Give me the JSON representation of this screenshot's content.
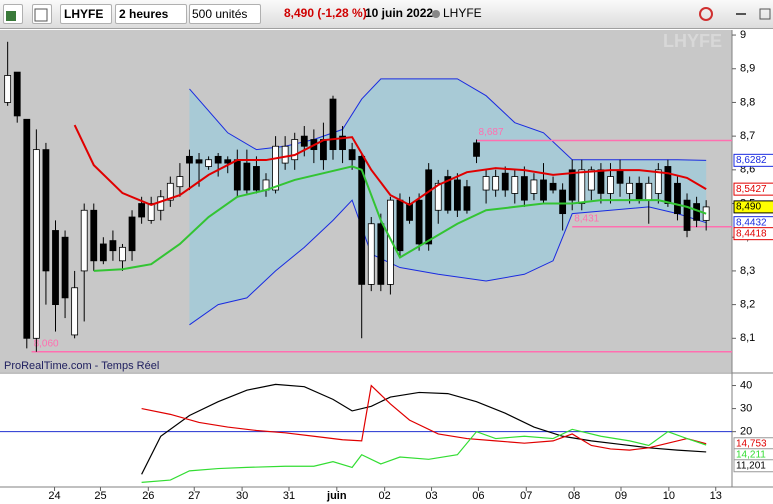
{
  "toolbar": {
    "symbol": "LHYFE",
    "period": "2 heures",
    "units": "500 unités",
    "quote": "8,490 (-1,28 %)",
    "date": "10 juin 2022",
    "name": "LHYFE"
  },
  "chart_data": [
    {
      "type": "candlestick",
      "watermark": "LHYFE",
      "footer": "ProRealTime.com - Temps Réel",
      "xlim": [
        -0.8,
        75.7
      ],
      "ylim": [
        8.0,
        9.015
      ],
      "yticks": [
        {
          "value": 9,
          "label": "9"
        },
        {
          "value": 8.9,
          "label": "8,9"
        },
        {
          "value": 8.8,
          "label": "8,8"
        },
        {
          "value": 8.7,
          "label": "8,7"
        },
        {
          "value": 8.6,
          "label": "8,6"
        },
        {
          "value": 8.5,
          "label": "8,5"
        },
        {
          "value": 8.4,
          "label": "8,4"
        },
        {
          "value": 8.3,
          "label": "8,3"
        },
        {
          "value": 8.2,
          "label": "8,2"
        },
        {
          "value": 8.1,
          "label": "8,1"
        }
      ],
      "xticks": [
        {
          "value": 4.9,
          "label": "24"
        },
        {
          "value": 9.7,
          "label": "25"
        },
        {
          "value": 14.7,
          "label": "26"
        },
        {
          "value": 19.5,
          "label": "27"
        },
        {
          "value": 24.5,
          "label": "30"
        },
        {
          "value": 29.4,
          "label": "31"
        },
        {
          "value": 34.4,
          "label": "juin"
        },
        {
          "value": 39.4,
          "label": "02"
        },
        {
          "value": 44.3,
          "label": "03"
        },
        {
          "value": 49.2,
          "label": "06"
        },
        {
          "value": 54.2,
          "label": "07"
        },
        {
          "value": 59.2,
          "label": "08"
        },
        {
          "value": 64.1,
          "label": "09"
        },
        {
          "value": 69.1,
          "label": "10"
        },
        {
          "value": 74,
          "label": "13"
        }
      ],
      "candles": {
        "open": [
          8.8,
          8.89,
          8.75,
          8.1,
          8.66,
          8.42,
          8.4,
          8.11,
          8.3,
          8.48,
          8.38,
          8.39,
          8.33,
          8.46,
          8.5,
          8.45,
          8.48,
          8.51,
          8.55,
          8.64,
          8.63,
          8.61,
          8.64,
          8.63,
          8.63,
          8.62,
          8.61,
          8.54,
          8.54,
          8.62,
          8.63,
          8.7,
          8.69,
          8.69,
          8.81,
          8.7,
          8.66,
          8.64,
          8.26,
          8.44,
          8.26,
          8.51,
          8.5,
          8.51,
          8.6,
          8.48,
          8.58,
          8.57,
          8.55,
          8.68,
          8.54,
          8.54,
          8.59,
          8.53,
          8.58,
          8.53,
          8.57,
          8.56,
          8.54,
          8.6,
          8.5,
          8.54,
          8.6,
          8.53,
          8.6,
          8.53,
          8.56,
          8.51,
          8.53,
          8.61,
          8.56,
          8.51,
          8.5,
          8.45
        ],
        "high": [
          8.98,
          8.89,
          8.75,
          8.72,
          8.68,
          8.45,
          8.42,
          8.3,
          8.5,
          8.5,
          8.4,
          8.42,
          8.38,
          8.48,
          8.52,
          8.52,
          8.54,
          8.58,
          8.62,
          8.66,
          8.65,
          8.64,
          8.65,
          8.64,
          8.66,
          8.66,
          8.64,
          8.59,
          8.7,
          8.7,
          8.71,
          8.73,
          8.72,
          8.74,
          8.82,
          8.73,
          8.68,
          8.65,
          8.46,
          8.47,
          8.52,
          8.53,
          8.52,
          8.53,
          8.62,
          8.57,
          8.6,
          8.59,
          8.57,
          8.69,
          8.6,
          8.6,
          8.61,
          8.6,
          8.61,
          8.59,
          8.62,
          8.58,
          8.56,
          8.63,
          8.63,
          8.61,
          8.62,
          8.62,
          8.63,
          8.58,
          8.58,
          8.58,
          8.62,
          8.63,
          8.58,
          8.53,
          8.52,
          8.51
        ],
        "low": [
          8.79,
          8.74,
          8.07,
          8.06,
          8.2,
          8.12,
          8.16,
          8.1,
          8.15,
          8.3,
          8.32,
          8.33,
          8.3,
          8.33,
          8.44,
          8.44,
          8.45,
          8.49,
          8.52,
          8.54,
          8.55,
          8.6,
          8.58,
          8.59,
          8.52,
          8.53,
          8.53,
          8.52,
          8.53,
          8.6,
          8.6,
          8.64,
          8.62,
          8.6,
          8.63,
          8.62,
          8.6,
          8.1,
          8.24,
          8.24,
          8.23,
          8.34,
          8.44,
          8.36,
          8.36,
          8.44,
          8.47,
          8.46,
          8.47,
          8.62,
          8.5,
          8.52,
          8.52,
          8.5,
          8.49,
          8.51,
          8.5,
          8.53,
          8.42,
          8.48,
          8.48,
          8.51,
          8.5,
          8.5,
          8.52,
          8.5,
          8.5,
          8.44,
          8.5,
          8.49,
          8.45,
          8.4,
          8.43,
          8.42
        ],
        "close": [
          8.88,
          8.76,
          8.1,
          8.66,
          8.3,
          8.2,
          8.22,
          8.25,
          8.48,
          8.33,
          8.33,
          8.36,
          8.37,
          8.36,
          8.46,
          8.5,
          8.52,
          8.56,
          8.58,
          8.62,
          8.62,
          8.63,
          8.62,
          8.62,
          8.54,
          8.54,
          8.54,
          8.57,
          8.67,
          8.67,
          8.69,
          8.67,
          8.66,
          8.63,
          8.66,
          8.66,
          8.63,
          8.26,
          8.44,
          8.26,
          8.51,
          8.36,
          8.45,
          8.38,
          8.38,
          8.56,
          8.48,
          8.48,
          8.48,
          8.64,
          8.58,
          8.58,
          8.54,
          8.58,
          8.51,
          8.57,
          8.51,
          8.54,
          8.47,
          8.51,
          8.6,
          8.6,
          8.53,
          8.58,
          8.56,
          8.56,
          8.51,
          8.56,
          8.6,
          8.5,
          8.47,
          8.42,
          8.45,
          8.49
        ]
      },
      "bands": {
        "color": "#1a2be0",
        "fill": "#a8cad6",
        "upper": {
          "x": [
            19,
            23,
            26,
            29,
            32,
            35,
            37,
            39,
            42,
            47,
            50,
            53,
            56,
            59,
            62,
            66,
            70,
            73
          ],
          "values": [
            8.84,
            8.71,
            8.66,
            8.67,
            8.69,
            8.72,
            8.81,
            8.87,
            8.87,
            8.87,
            8.82,
            8.74,
            8.71,
            8.63,
            8.63,
            8.63,
            8.63,
            8.6282
          ]
        },
        "lower": {
          "x": [
            19,
            22,
            25,
            28,
            31,
            34,
            36,
            38,
            41,
            45,
            50,
            54,
            57,
            59,
            63,
            67,
            70,
            73
          ],
          "values": [
            8.14,
            8.2,
            8.22,
            8.3,
            8.37,
            8.45,
            8.51,
            8.35,
            8.31,
            8.29,
            8.27,
            8.29,
            8.33,
            8.47,
            8.48,
            8.49,
            8.47,
            8.4432
          ]
        }
      },
      "overlays": [
        {
          "color": "#e00000",
          "x": [
            7,
            9,
            12,
            15,
            18,
            21,
            24,
            27,
            30,
            33,
            36,
            38,
            40,
            42,
            45,
            48,
            51,
            54,
            57,
            60,
            63,
            66,
            69,
            71,
            73
          ],
          "values": [
            8.733,
            8.614,
            8.531,
            8.496,
            8.525,
            8.585,
            8.629,
            8.629,
            8.644,
            8.688,
            8.697,
            8.6,
            8.525,
            8.496,
            8.555,
            8.593,
            8.605,
            8.599,
            8.585,
            8.593,
            8.599,
            8.599,
            8.59,
            8.576,
            8.5427
          ]
        },
        {
          "color": "#33c433",
          "x": [
            9,
            12,
            15,
            18,
            21,
            24,
            27,
            30,
            33,
            36,
            37,
            39,
            41,
            44,
            47,
            50,
            53,
            56,
            59,
            62,
            65,
            68,
            71,
            73
          ],
          "values": [
            8.3,
            8.305,
            8.32,
            8.38,
            8.46,
            8.52,
            8.54,
            8.57,
            8.59,
            8.61,
            8.6,
            8.45,
            8.34,
            8.39,
            8.44,
            8.48,
            8.49,
            8.5,
            8.5,
            8.51,
            8.51,
            8.51,
            8.49,
            8.47
          ]
        }
      ],
      "levels": {
        "color": "#ff6fb0",
        "lines": [
          {
            "value": 8.687,
            "label": "8,687",
            "x": [
              49,
              75.7
            ]
          },
          {
            "value": 8.06,
            "label": "8,060",
            "x": [
              2.5,
              75.7
            ]
          },
          {
            "value": 8.431,
            "label": "8,431",
            "x": [
              59,
              75.7
            ]
          }
        ]
      },
      "price_tags": [
        {
          "value": 8.6282,
          "label": "8,6282",
          "color": "#1a2be0",
          "background": "#ffffff"
        },
        {
          "value": 8.5427,
          "label": "8,5427",
          "color": "#e00000",
          "background": "#ffffff"
        },
        {
          "value": 8.49,
          "label": "8,490",
          "color": "#000000",
          "background": "#ffff00"
        },
        {
          "value": 8.4432,
          "label": "8,4432",
          "color": "#1a2be0",
          "background": "#ffffff"
        },
        {
          "value": 8.4418,
          "label": "8,4418",
          "color": "#e00000",
          "background": "#ffffff"
        }
      ]
    },
    {
      "type": "line",
      "xlim": [
        -0.8,
        75.7
      ],
      "ylim": [
        -4,
        45
      ],
      "yticks": [
        20,
        30,
        40
      ],
      "hline": {
        "value": 20,
        "color": "#2030d0"
      },
      "series": [
        {
          "color": "#000000",
          "x": [
            14,
            16,
            19,
            22,
            25,
            28,
            31,
            34,
            36,
            38,
            40,
            43,
            46,
            49,
            52,
            55,
            58,
            61,
            64,
            67,
            70,
            73
          ],
          "values": [
            1.5,
            18,
            27,
            33,
            38,
            40.5,
            39.5,
            34,
            29,
            31,
            35,
            37,
            36.5,
            33,
            28,
            22,
            18,
            16,
            14.5,
            13,
            12,
            11.201
          ],
          "value_labels": "11,201"
        },
        {
          "color": "#e00000",
          "x": [
            14,
            17,
            20,
            23,
            26,
            29,
            32,
            35,
            37,
            38,
            40,
            42,
            45,
            48,
            51,
            54,
            57,
            59,
            61,
            63,
            65,
            67,
            69,
            71,
            73
          ],
          "values": [
            30,
            27.5,
            24,
            22,
            20.5,
            19.5,
            18,
            16.5,
            16,
            40,
            32,
            25,
            19,
            17,
            16,
            15,
            16,
            19,
            14,
            12.5,
            12,
            13,
            15,
            17,
            14.753
          ],
          "value_labels": "14,753"
        },
        {
          "color": "#33dd33",
          "x": [
            14,
            17,
            19,
            22,
            25,
            29,
            32,
            34,
            36,
            37,
            39,
            41,
            44,
            47,
            49,
            51,
            54,
            57,
            59,
            62,
            65,
            67,
            69,
            71,
            73
          ],
          "values": [
            -2,
            -1,
            3,
            4,
            4.5,
            5,
            5,
            7,
            4.5,
            10,
            6,
            9,
            8,
            10,
            20,
            17,
            18,
            17,
            21,
            18,
            16,
            14,
            20,
            17,
            14.211
          ],
          "value_labels": "14,211"
        }
      ]
    }
  ]
}
